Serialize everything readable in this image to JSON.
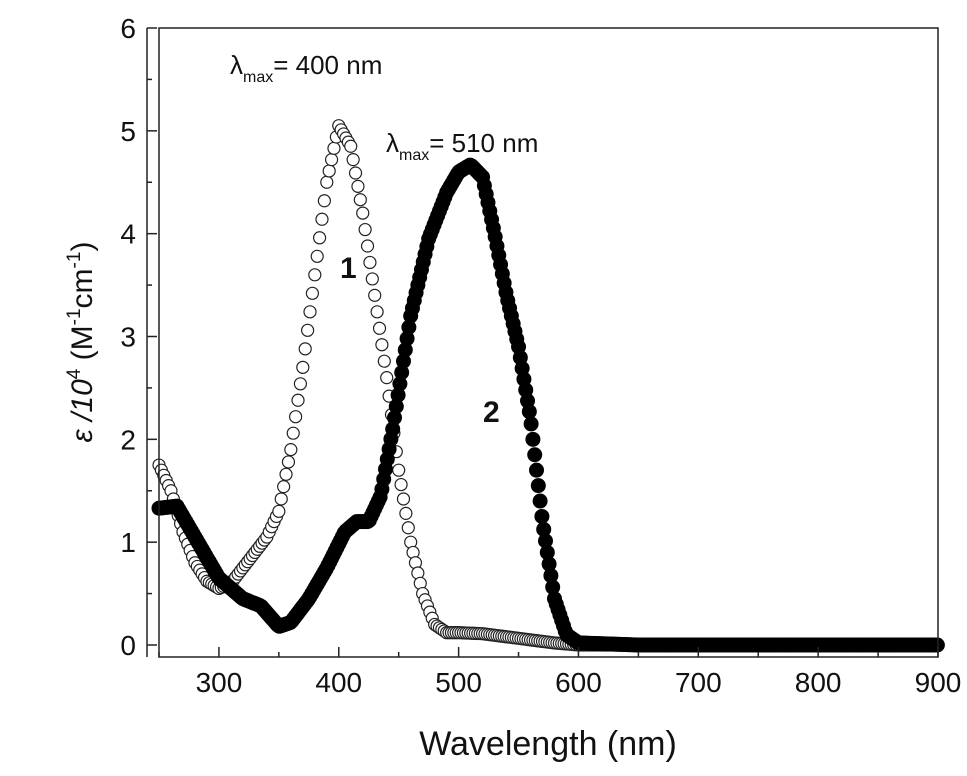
{
  "chart_data": {
    "type": "scatter",
    "title": "",
    "xlabel": "Wavelength (nm)",
    "ylabel": {
      "main": "ε /10",
      "exp": "4",
      "units_open": " (M",
      "m_exp": "-1",
      "cm": "cm",
      "cm_exp": "-1",
      "units_close": ")"
    },
    "xlim": [
      250,
      900
    ],
    "ylim": [
      0,
      6
    ],
    "x_ticks": [
      300,
      400,
      500,
      600,
      700,
      800,
      900
    ],
    "y_ticks": [
      0,
      1,
      2,
      3,
      4,
      5,
      6
    ],
    "grid": false,
    "series": [
      {
        "name": "1",
        "marker": "open-circle",
        "x": [
          250,
          260,
          270,
          280,
          290,
          300,
          310,
          320,
          330,
          340,
          350,
          360,
          370,
          380,
          390,
          400,
          410,
          420,
          430,
          440,
          450,
          460,
          470,
          480,
          490,
          500,
          520,
          540,
          560,
          580,
          600,
          650,
          700,
          800,
          900
        ],
        "y": [
          1.75,
          1.5,
          1.1,
          0.8,
          0.62,
          0.55,
          0.6,
          0.75,
          0.9,
          1.05,
          1.3,
          1.9,
          2.7,
          3.6,
          4.5,
          5.05,
          4.85,
          4.2,
          3.4,
          2.6,
          1.7,
          1.0,
          0.5,
          0.2,
          0.12,
          0.12,
          0.11,
          0.08,
          0.05,
          0.02,
          0.0,
          0.0,
          0.0,
          0.0,
          0.0
        ]
      },
      {
        "name": "2",
        "marker": "filled-circle",
        "x": [
          250,
          265,
          280,
          300,
          320,
          335,
          350,
          360,
          375,
          390,
          405,
          415,
          425,
          435,
          445,
          460,
          475,
          490,
          500,
          510,
          520,
          530,
          540,
          550,
          560,
          570,
          580,
          590,
          600,
          650,
          700,
          800,
          900
        ],
        "y": [
          1.33,
          1.35,
          1.05,
          0.65,
          0.45,
          0.38,
          0.18,
          0.22,
          0.45,
          0.75,
          1.1,
          1.2,
          1.2,
          1.45,
          2.1,
          3.2,
          3.95,
          4.4,
          4.6,
          4.67,
          4.55,
          4.0,
          3.4,
          2.9,
          2.2,
          1.2,
          0.45,
          0.1,
          0.02,
          0.0,
          0.0,
          0.0,
          0.0
        ]
      }
    ],
    "annotations": [
      {
        "lambda": "λ",
        "sub": "max",
        "text": "= 400 nm"
      },
      {
        "lambda": "λ",
        "sub": "max",
        "text": "= 510 nm"
      },
      {
        "text": "1"
      },
      {
        "text": "2"
      }
    ],
    "legend": "none"
  }
}
